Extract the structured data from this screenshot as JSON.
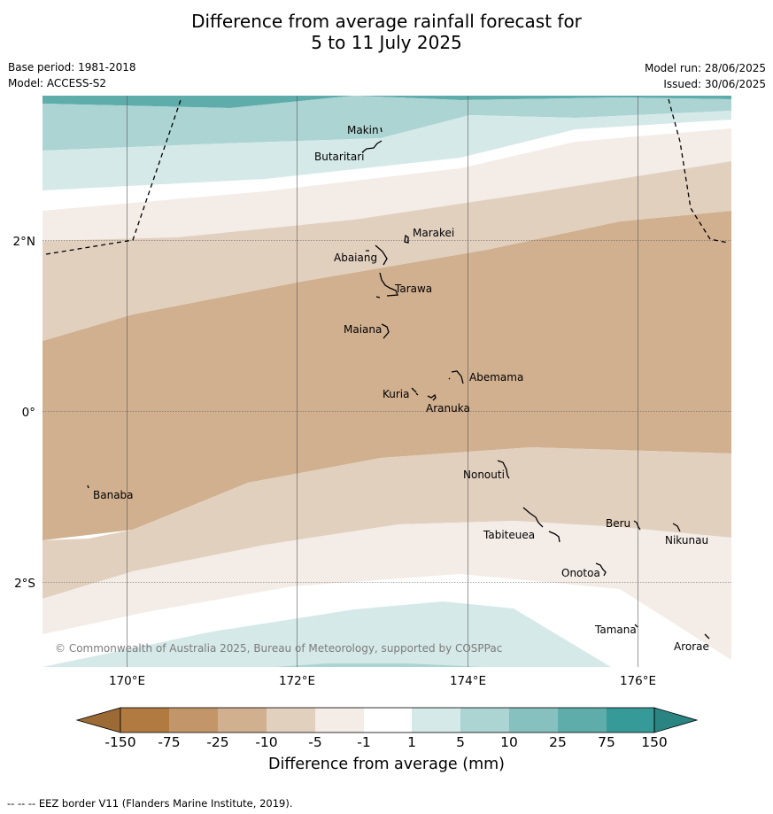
{
  "title": {
    "line1": "Difference from average rainfall forecast for",
    "line2": "5 to 11 July 2025"
  },
  "meta": {
    "base_period": "Base period: 1981-2018",
    "model": "Model: ACCESS-S2",
    "model_run": "Model run: 28/06/2025",
    "issued": "Issued: 30/06/2025"
  },
  "map": {
    "lat_labels": [
      "2°N",
      "0°",
      "2°S"
    ],
    "lon_labels": [
      "170°E",
      "172°E",
      "174°E",
      "176°E"
    ],
    "places": [
      "Makin",
      "Butaritari",
      "Marakei",
      "Abaiang",
      "Tarawa",
      "Maiana",
      "Abemama",
      "Kuria",
      "Aranuka",
      "Nonouti",
      "Banaba",
      "Tabiteuea",
      "Beru",
      "Nikunau",
      "Onotoa",
      "Tamana",
      "Arorae"
    ],
    "copyright": "© Commonwealth of Australia 2025, Bureau of Meteorology, supported by COSPPac"
  },
  "colorbar": {
    "title": "Difference from average (mm)",
    "ticks": [
      "-150",
      "-75",
      "-25",
      "-10",
      "-5",
      "-1",
      "1",
      "5",
      "10",
      "25",
      "75",
      "150"
    ],
    "colors": [
      "#b07a40",
      "#c39669",
      "#d1b08f",
      "#e2d0bf",
      "#f3ece7",
      "#ffffff",
      "#d5e9e8",
      "#acd4d3",
      "#86c1bf",
      "#5eadab",
      "#359a98"
    ],
    "under_color": "#9c6a35",
    "over_color": "#2a8482"
  },
  "footnote": "--  --  -- EEZ border V11 (Flanders Marine Institute, 2019)."
}
